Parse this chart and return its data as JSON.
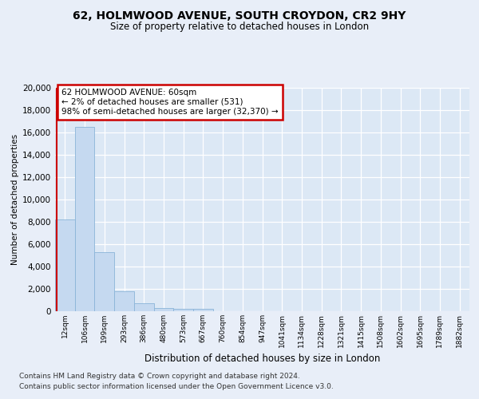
{
  "title1": "62, HOLMWOOD AVENUE, SOUTH CROYDON, CR2 9HY",
  "title2": "Size of property relative to detached houses in London",
  "xlabel": "Distribution of detached houses by size in London",
  "ylabel": "Number of detached properties",
  "categories": [
    "12sqm",
    "106sqm",
    "199sqm",
    "293sqm",
    "386sqm",
    "480sqm",
    "573sqm",
    "667sqm",
    "760sqm",
    "854sqm",
    "947sqm",
    "1041sqm",
    "1134sqm",
    "1228sqm",
    "1321sqm",
    "1415sqm",
    "1508sqm",
    "1602sqm",
    "1695sqm",
    "1789sqm",
    "1882sqm"
  ],
  "bar_values": [
    8200,
    16500,
    5300,
    1800,
    750,
    280,
    240,
    240,
    0,
    0,
    0,
    0,
    0,
    0,
    0,
    0,
    0,
    0,
    0,
    0,
    0
  ],
  "bar_color": "#c5d9f0",
  "bar_edge_color": "#8ab4d8",
  "property_line_color": "#cc0000",
  "annotation_text": "62 HOLMWOOD AVENUE: 60sqm\n← 2% of detached houses are smaller (531)\n98% of semi-detached houses are larger (32,370) →",
  "annotation_box_color": "#ffffff",
  "annotation_box_edge_color": "#cc0000",
  "bg_color": "#e8eef8",
  "plot_bg_color": "#dce8f5",
  "grid_color": "#ffffff",
  "footer1": "Contains HM Land Registry data © Crown copyright and database right 2024.",
  "footer2": "Contains public sector information licensed under the Open Government Licence v3.0.",
  "ylim": [
    0,
    20000
  ],
  "yticks": [
    0,
    2000,
    4000,
    6000,
    8000,
    10000,
    12000,
    14000,
    16000,
    18000,
    20000
  ]
}
